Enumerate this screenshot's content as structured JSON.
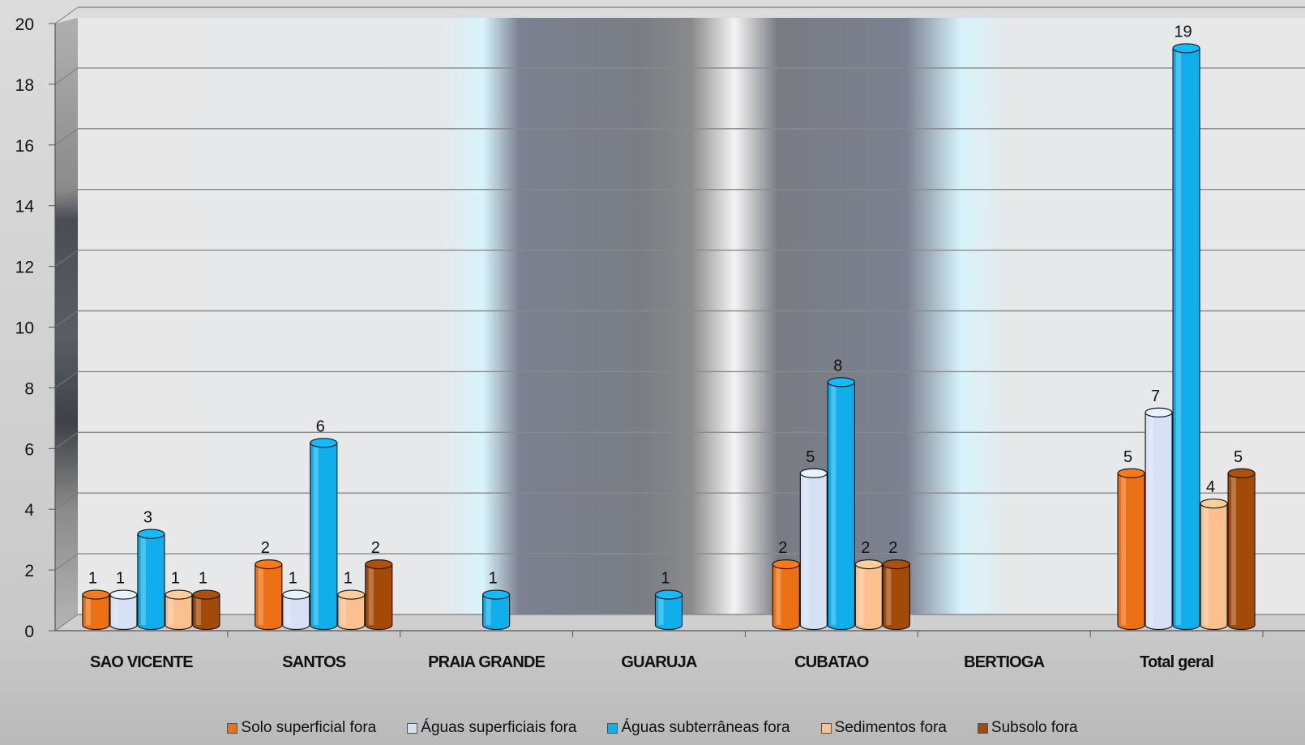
{
  "chart_data": {
    "type": "bar",
    "title": "",
    "xlabel": "",
    "ylabel": "",
    "ylim": [
      0,
      20
    ],
    "y_ticks": [
      "0",
      "2",
      "4",
      "6",
      "8",
      "10",
      "12",
      "14",
      "16",
      "18",
      "20"
    ],
    "grid": true,
    "legend_position": "bottom",
    "categories": [
      "SAO VICENTE",
      "SANTOS",
      "PRAIA GRANDE",
      "GUARUJA",
      "CUBATAO",
      "BERTIOGA",
      "Total geral"
    ],
    "series": [
      {
        "name": "Solo superficial fora",
        "color": "#ec7014",
        "values": [
          1,
          2,
          null,
          null,
          2,
          null,
          5
        ]
      },
      {
        "name": "Águas superficiais fora",
        "color": "#d6e1f6",
        "values": [
          1,
          1,
          null,
          null,
          5,
          null,
          7
        ]
      },
      {
        "name": "Águas subterrâneas fora",
        "color": "#10aeea",
        "values": [
          3,
          6,
          1,
          1,
          8,
          null,
          19
        ]
      },
      {
        "name": "Sedimentos fora",
        "color": "#fbc08e",
        "values": [
          1,
          1,
          null,
          null,
          2,
          null,
          4
        ]
      },
      {
        "name": "Subsolo fora",
        "color": "#a44a08",
        "values": [
          1,
          2,
          null,
          null,
          2,
          null,
          5
        ]
      }
    ]
  }
}
